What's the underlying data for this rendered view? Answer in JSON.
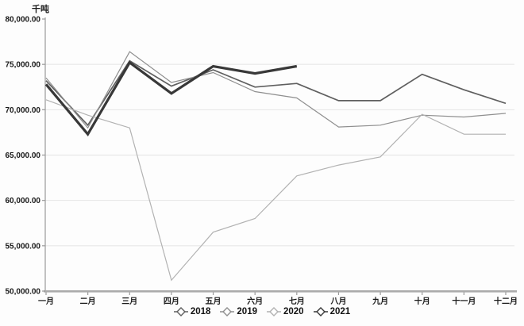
{
  "chart_data": {
    "type": "line",
    "title": "",
    "ylabel": "千吨",
    "xlabel": "",
    "categories": [
      "一月",
      "二月",
      "三月",
      "四月",
      "五月",
      "六月",
      "七月",
      "八月",
      "九月",
      "十月",
      "十一月",
      "十二月"
    ],
    "series": [
      {
        "name": "2018",
        "color": "#5f5f5f",
        "width": 1.7,
        "values": [
          73200,
          68300,
          75400,
          72600,
          74400,
          72500,
          72900,
          71000,
          71000,
          73900,
          72200,
          70700
        ]
      },
      {
        "name": "2019",
        "color": "#8f8f8f",
        "width": 1.2,
        "values": [
          73500,
          68000,
          76400,
          73000,
          74100,
          72000,
          71300,
          68100,
          68300,
          69400,
          69200,
          69600
        ]
      },
      {
        "name": "2020",
        "color": "#b2b2b2",
        "width": 1.2,
        "values": [
          71100,
          69400,
          68000,
          51200,
          56500,
          58000,
          62700,
          63900,
          64800,
          69500,
          67300,
          67300
        ]
      },
      {
        "name": "2021",
        "color": "#383838",
        "width": 3.2,
        "values": [
          72800,
          67300,
          75200,
          71800,
          74800,
          74000,
          74800,
          null,
          null,
          null,
          null,
          null
        ]
      }
    ],
    "ylim": [
      50000,
      80000
    ],
    "ytick_step": 5000,
    "ytick_labels": [
      "50,000.00",
      "55,000.00",
      "60,000.00",
      "65,000.00",
      "70,000.00",
      "75,000.00",
      "80,000.00"
    ],
    "grid": true,
    "gridline_color": "#e4e4e4",
    "axis_color": "#9a9a9a",
    "text_color": "#1a1a1a",
    "legend_position": "bottom"
  }
}
